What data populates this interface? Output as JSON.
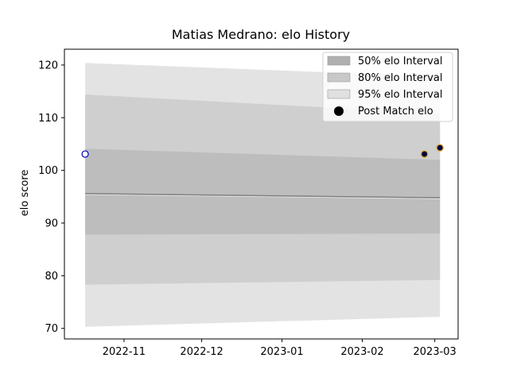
{
  "chart_data": {
    "type": "line",
    "title": "Matias Medrano: elo History",
    "xlabel": "",
    "ylabel": "elo score",
    "x_range": [
      "2022-10-09",
      "2023-03-10"
    ],
    "ylim": [
      68,
      123
    ],
    "x_ticks": [
      {
        "date": "2022-11-01",
        "label": "2022-11"
      },
      {
        "date": "2022-12-01",
        "label": "2022-12"
      },
      {
        "date": "2023-01-01",
        "label": "2023-01"
      },
      {
        "date": "2023-02-01",
        "label": "2023-02"
      },
      {
        "date": "2023-03-01",
        "label": "2023-03"
      }
    ],
    "y_ticks": [
      70,
      80,
      90,
      100,
      110,
      120
    ],
    "grid": false,
    "legend_position": "top-right",
    "bands": [
      {
        "name": "95% elo Interval",
        "color": "#e3e3e3",
        "x": [
          "2022-10-17",
          "2023-03-03"
        ],
        "lower": [
          70.3,
          72.2
        ],
        "upper": [
          120.4,
          117.8
        ]
      },
      {
        "name": "80% elo Interval",
        "color": "#cfcfcf",
        "x": [
          "2022-10-17",
          "2023-03-03"
        ],
        "lower": [
          78.3,
          79.2
        ],
        "upper": [
          114.4,
          110.8
        ]
      },
      {
        "name": "50% elo Interval",
        "color": "#bdbdbd",
        "x": [
          "2022-10-17",
          "2023-03-03"
        ],
        "lower": [
          87.8,
          88.0
        ],
        "upper": [
          104.1,
          102.0
        ]
      }
    ],
    "mean_line": {
      "color": "#808080",
      "x": [
        "2022-10-17",
        "2023-03-03"
      ],
      "values": [
        95.6,
        94.8
      ]
    },
    "series": [
      {
        "name": "Post Match elo",
        "points": [
          {
            "x": "2022-10-17",
            "y": 103.1,
            "face": "#ffffff",
            "edge": "#0000bb"
          },
          {
            "x": "2023-02-25",
            "y": 103.1,
            "face": "#000044",
            "edge": "#d4a017"
          },
          {
            "x": "2023-03-03",
            "y": 104.3,
            "face": "#000044",
            "edge": "#d4a017"
          }
        ]
      }
    ],
    "legend": [
      {
        "label": "50% elo Interval",
        "kind": "patch",
        "color": "#b0b0b0"
      },
      {
        "label": "80% elo Interval",
        "kind": "patch",
        "color": "#c8c8c8"
      },
      {
        "label": "95% elo Interval",
        "kind": "patch",
        "color": "#e0e0e0"
      },
      {
        "label": "Post Match elo",
        "kind": "marker",
        "color": "#000000"
      }
    ]
  }
}
